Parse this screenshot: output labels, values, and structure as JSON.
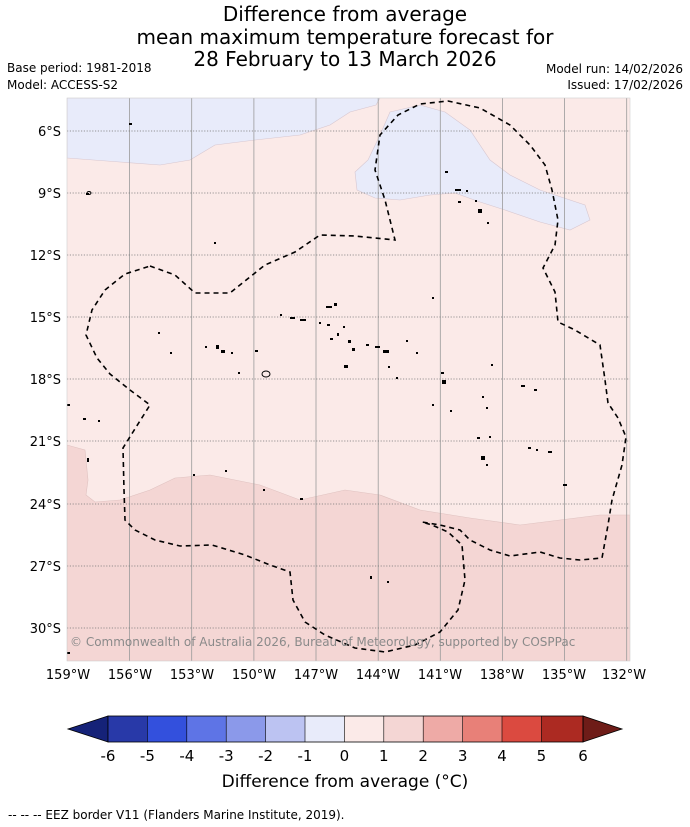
{
  "title": {
    "line1": "Difference from average",
    "line2": "mean maximum temperature forecast for",
    "line3": "28 February to 13 March 2026"
  },
  "meta": {
    "base_period": "Base period: 1981-2018",
    "model": "Model: ACCESS-S2",
    "model_run": "Model run: 14/02/2026",
    "issued": "Issued: 17/02/2026"
  },
  "map": {
    "lat_labels": [
      "6°S",
      "9°S",
      "12°S",
      "15°S",
      "18°S",
      "21°S",
      "24°S",
      "27°S",
      "30°S"
    ],
    "lon_labels": [
      "159°W",
      "156°W",
      "153°W",
      "150°W",
      "147°W",
      "144°W",
      "141°W",
      "138°W",
      "135°W",
      "132°W"
    ],
    "copyright": "© Commonwealth of Australia 2026, Bureau of Meteorology, supported by COSPPac",
    "colors": {
      "below_0_to_1": "#e8ebfa",
      "above_0_to_1": "#fbeae8",
      "above_1_to_2": "#f4d6d4"
    }
  },
  "colorbar": {
    "ticks": [
      "-6",
      "-5",
      "-4",
      "-3",
      "-2",
      "-1",
      "0",
      "1",
      "2",
      "3",
      "4",
      "5",
      "6"
    ],
    "colors": [
      "#2839a8",
      "#3350dd",
      "#5e74e6",
      "#8b99ea",
      "#bcc3f2",
      "#e8ebfa",
      "#fbeae8",
      "#f4d6d4",
      "#eeaaa6",
      "#e88078",
      "#db4a40",
      "#ac2a22"
    ],
    "low_extend": "#152278",
    "high_extend": "#6e1c18",
    "title": "Difference from average (°C)"
  },
  "footer": "-- -- -- EEZ border V11 (Flanders Marine Institute, 2019)."
}
